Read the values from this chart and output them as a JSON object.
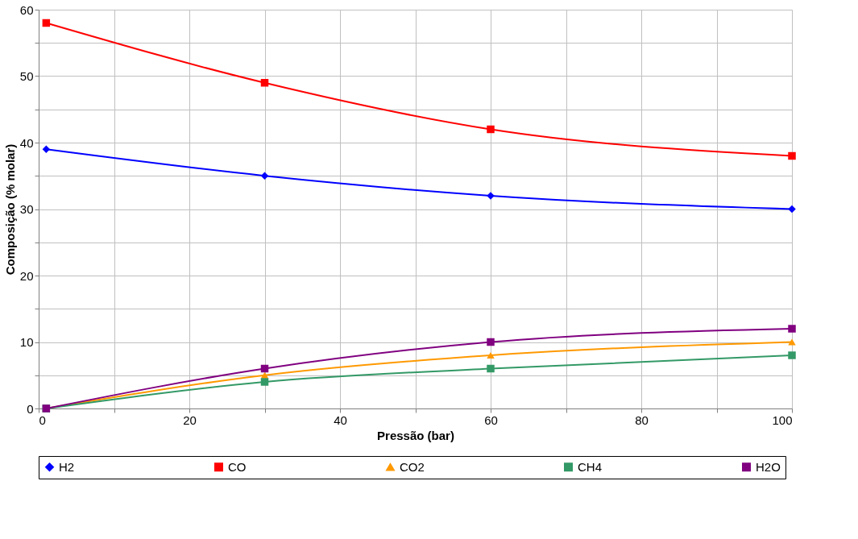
{
  "chart_data": {
    "type": "line",
    "xlabel": "Pressão (bar)",
    "ylabel": "Composição (% molar)",
    "x": [
      1,
      30,
      60,
      100
    ],
    "series": [
      {
        "name": "H2",
        "color": "#0000ff",
        "marker": "diamond",
        "values": [
          39,
          35,
          32,
          30
        ]
      },
      {
        "name": "CO",
        "color": "#ff0000",
        "marker": "square",
        "values": [
          58,
          49,
          42,
          38
        ]
      },
      {
        "name": "CO2",
        "color": "#ff9900",
        "marker": "triangle",
        "values": [
          0,
          5,
          8,
          10
        ]
      },
      {
        "name": "CH4",
        "color": "#339966",
        "marker": "square",
        "values": [
          0,
          4,
          6,
          8
        ]
      },
      {
        "name": "H2O",
        "color": "#800080",
        "marker": "square",
        "values": [
          0,
          6,
          10,
          12
        ]
      }
    ],
    "xlim": [
      0,
      100
    ],
    "xticks": [
      0,
      {
        "value": 10,
        "label": null
      },
      20,
      {
        "value": 30,
        "label": null
      },
      40,
      {
        "value": 50,
        "label": null
      },
      60,
      {
        "value": 70,
        "label": null
      },
      80,
      {
        "value": 90,
        "label": null
      },
      100
    ],
    "ylim": [
      0,
      60
    ],
    "yticks": [
      0,
      {
        "value": 5,
        "label": null
      },
      10,
      {
        "value": 15,
        "label": null
      },
      20,
      {
        "value": 25,
        "label": null
      },
      30,
      {
        "value": 35,
        "label": null
      },
      40,
      {
        "value": 45,
        "label": null
      },
      50,
      {
        "value": 55,
        "label": null
      },
      60
    ],
    "grid": true,
    "legend": "bottom",
    "line_style": "solid"
  }
}
